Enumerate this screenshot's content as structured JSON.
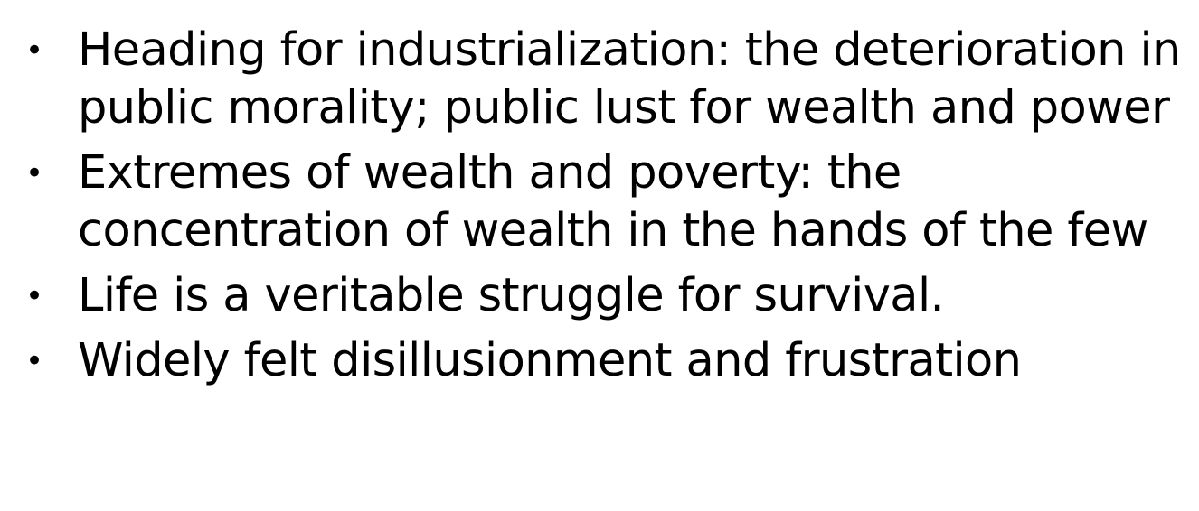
{
  "slide": {
    "bullets": [
      {
        "marker": "•",
        "text": "Heading for industrialization: the deterioration in public morality; public lust for wealth and power"
      },
      {
        "marker": "•",
        "text": "Extremes of wealth and poverty: the concentration of wealth in the hands of the few"
      },
      {
        "marker": "•",
        "text": "Life is a veritable struggle for survival."
      },
      {
        "marker": "•",
        "text": "Widely felt disillusionment and frustration"
      }
    ]
  },
  "colors": {
    "background": "#ffffff",
    "text": "#000000"
  }
}
